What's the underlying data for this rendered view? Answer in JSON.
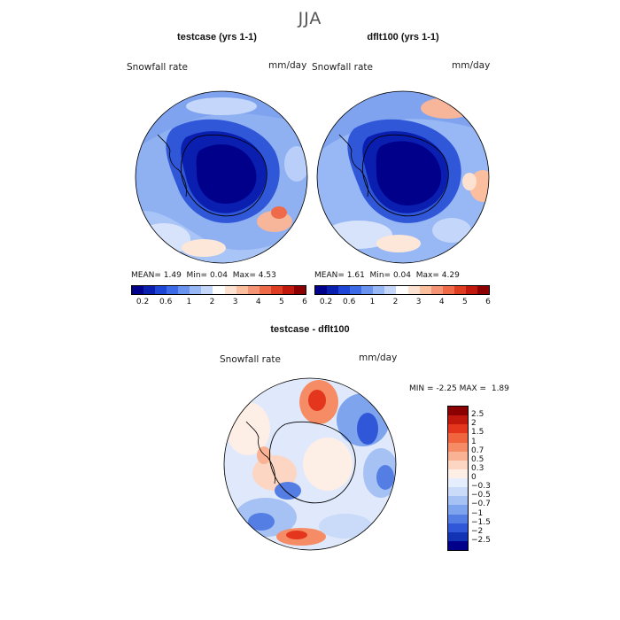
{
  "season": "JJA",
  "variable_label": "Snowfall rate",
  "units": "mm/day",
  "panels": {
    "left": {
      "title": "testcase (yrs 1-1)",
      "stats": {
        "mean_label": "MEAN=",
        "mean": "1.49",
        "min_label": "Min=",
        "min": "0.04",
        "max_label": "Max=",
        "max": "4.53"
      }
    },
    "right": {
      "title": "dflt100 (yrs 1-1)",
      "stats": {
        "mean_label": "MEAN=",
        "mean": "1.61",
        "min_label": "Min=",
        "min": "0.04",
        "max_label": "Max=",
        "max": "4.29"
      }
    },
    "diff": {
      "title": "testcase - dflt100",
      "min_label": "MIN =",
      "min": "-2.25",
      "max_label": "MAX =",
      "max": "1.89"
    }
  },
  "colorbar_abs": {
    "colors": [
      "#00008b",
      "#0a1fb0",
      "#1f45d6",
      "#3d6be8",
      "#6a93f0",
      "#98b7f5",
      "#c4d6fa",
      "#ffffff",
      "#fde2d2",
      "#fbbf9f",
      "#f59575",
      "#ee6a48",
      "#df3d22",
      "#c0180c",
      "#8b0000"
    ],
    "tick_labels": [
      "0.2",
      "0.6",
      "1",
      "2",
      "3",
      "4",
      "5",
      "6"
    ]
  },
  "colorbar_diff": {
    "colors": [
      "#8b0000",
      "#c0180c",
      "#e4361d",
      "#f0643e",
      "#f58c66",
      "#f9b394",
      "#fcd6c3",
      "#fdeee6",
      "#e5eefc",
      "#c9dbf8",
      "#a6c2f4",
      "#7ea4ee",
      "#557ee5",
      "#2f57d8",
      "#1234b4",
      "#00008b"
    ],
    "tick_labels": [
      "2.5",
      "2",
      "1.5",
      "1",
      "0.7",
      "0.5",
      "0.3",
      "0",
      "−0.3",
      "−0.5",
      "−0.7",
      "−1",
      "−1.5",
      "−2",
      "−2.5"
    ]
  }
}
